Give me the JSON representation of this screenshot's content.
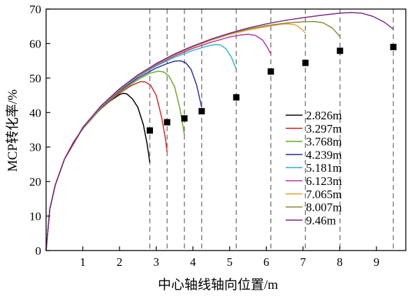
{
  "chart_data": {
    "type": "line",
    "title": "",
    "xlabel": "中心轴线轴向位置/m",
    "ylabel": "MCP转化率/%",
    "xlim": [
      0,
      9.8
    ],
    "ylim": [
      0,
      70
    ],
    "xticks": [
      "1",
      "2",
      "3",
      "4",
      "5",
      "6",
      "7",
      "8",
      "9"
    ],
    "yticks": [
      "0",
      "10",
      "20",
      "30",
      "40",
      "50",
      "60",
      "70"
    ],
    "grid": false,
    "legend_position": "center-right",
    "vertical_reference_lines": [
      2.826,
      3.297,
      3.768,
      4.239,
      5.181,
      6.123,
      7.065,
      8.007,
      9.46
    ],
    "series": [
      {
        "name": "2.826m",
        "color": "#000000",
        "points": [
          [
            0,
            0
          ],
          [
            0.1,
            12
          ],
          [
            0.25,
            19
          ],
          [
            0.5,
            26.5
          ],
          [
            0.75,
            31.5
          ],
          [
            1,
            35.3
          ],
          [
            1.25,
            38.5
          ],
          [
            1.5,
            41.2
          ],
          [
            1.75,
            43.4
          ],
          [
            2,
            45.2
          ],
          [
            2.1,
            45.6
          ],
          [
            2.2,
            45.4
          ],
          [
            2.35,
            44
          ],
          [
            2.5,
            41.5
          ],
          [
            2.65,
            36.5
          ],
          [
            2.75,
            31
          ],
          [
            2.826,
            25.5
          ]
        ]
      },
      {
        "name": "3.297m",
        "color": "#d62a2a",
        "points": [
          [
            0,
            0
          ],
          [
            0.1,
            12
          ],
          [
            0.25,
            19
          ],
          [
            0.5,
            26.5
          ],
          [
            0.75,
            31.5
          ],
          [
            1,
            35.3
          ],
          [
            1.5,
            41.3
          ],
          [
            2,
            45.6
          ],
          [
            2.3,
            47.7
          ],
          [
            2.55,
            48.9
          ],
          [
            2.7,
            48.9
          ],
          [
            2.85,
            47.9
          ],
          [
            3,
            45
          ],
          [
            3.15,
            38.5
          ],
          [
            3.25,
            32.5
          ],
          [
            3.297,
            28.5
          ]
        ]
      },
      {
        "name": "3.768m",
        "color": "#6aaa2a",
        "points": [
          [
            0,
            0
          ],
          [
            0.1,
            12
          ],
          [
            0.25,
            19
          ],
          [
            0.5,
            26.5
          ],
          [
            1,
            35.4
          ],
          [
            1.5,
            41.4
          ],
          [
            2,
            46
          ],
          [
            2.5,
            49.5
          ],
          [
            2.8,
            51.3
          ],
          [
            3.05,
            52
          ],
          [
            3.2,
            51.8
          ],
          [
            3.35,
            50.5
          ],
          [
            3.5,
            47.5
          ],
          [
            3.65,
            41
          ],
          [
            3.768,
            33.5
          ]
        ]
      },
      {
        "name": "4.239m",
        "color": "#2e3192",
        "points": [
          [
            0,
            0
          ],
          [
            0.1,
            12
          ],
          [
            0.25,
            19
          ],
          [
            0.5,
            26.5
          ],
          [
            1,
            35.5
          ],
          [
            1.5,
            41.6
          ],
          [
            2,
            46.3
          ],
          [
            2.5,
            50
          ],
          [
            3,
            52.9
          ],
          [
            3.3,
            54.2
          ],
          [
            3.5,
            54.9
          ],
          [
            3.65,
            55
          ],
          [
            3.8,
            54.5
          ],
          [
            3.95,
            52.5
          ],
          [
            4.1,
            48
          ],
          [
            4.239,
            41.5
          ]
        ]
      },
      {
        "name": "5.181m",
        "color": "#36b6c8",
        "points": [
          [
            0,
            0
          ],
          [
            0.1,
            12
          ],
          [
            0.25,
            19
          ],
          [
            0.5,
            26.5
          ],
          [
            1,
            35.5
          ],
          [
            1.5,
            41.7
          ],
          [
            2,
            46.5
          ],
          [
            2.5,
            50.4
          ],
          [
            3,
            53.5
          ],
          [
            3.5,
            56
          ],
          [
            4,
            58
          ],
          [
            4.4,
            59.3
          ],
          [
            4.6,
            59.7
          ],
          [
            4.75,
            59.6
          ],
          [
            4.9,
            58.5
          ],
          [
            5.05,
            56
          ],
          [
            5.181,
            52.5
          ]
        ]
      },
      {
        "name": "6.123m",
        "color": "#b033b0",
        "points": [
          [
            0,
            0
          ],
          [
            0.1,
            12
          ],
          [
            0.25,
            19
          ],
          [
            0.5,
            26.5
          ],
          [
            1,
            35.6
          ],
          [
            1.5,
            41.8
          ],
          [
            2,
            46.6
          ],
          [
            2.5,
            50.6
          ],
          [
            3,
            53.8
          ],
          [
            3.5,
            56.4
          ],
          [
            4,
            58.6
          ],
          [
            4.5,
            60.4
          ],
          [
            5,
            61.9
          ],
          [
            5.3,
            62.5
          ],
          [
            5.5,
            62.7
          ],
          [
            5.7,
            62.4
          ],
          [
            5.9,
            61
          ],
          [
            6.05,
            58.5
          ],
          [
            6.123,
            57
          ]
        ]
      },
      {
        "name": "7.065m",
        "color": "#e8a838",
        "points": [
          [
            0,
            0
          ],
          [
            0.1,
            12
          ],
          [
            0.25,
            19
          ],
          [
            0.5,
            26.5
          ],
          [
            1,
            35.6
          ],
          [
            1.5,
            41.8
          ],
          [
            2,
            46.7
          ],
          [
            2.5,
            50.7
          ],
          [
            3,
            54
          ],
          [
            3.5,
            56.7
          ],
          [
            4,
            59
          ],
          [
            4.5,
            61
          ],
          [
            5,
            62.6
          ],
          [
            5.5,
            63.9
          ],
          [
            6,
            64.9
          ],
          [
            6.4,
            65.6
          ],
          [
            6.6,
            65.7
          ],
          [
            6.8,
            65.4
          ],
          [
            6.95,
            64.3
          ],
          [
            7.065,
            63
          ]
        ]
      },
      {
        "name": "8.007m",
        "color": "#8a8a3a",
        "points": [
          [
            0,
            0
          ],
          [
            0.1,
            12
          ],
          [
            0.25,
            19
          ],
          [
            0.5,
            26.5
          ],
          [
            1,
            35.7
          ],
          [
            1.5,
            41.9
          ],
          [
            2,
            46.8
          ],
          [
            2.5,
            50.8
          ],
          [
            3,
            54.1
          ],
          [
            3.5,
            56.9
          ],
          [
            4,
            59.2
          ],
          [
            4.5,
            61.2
          ],
          [
            5,
            62.9
          ],
          [
            5.5,
            64.2
          ],
          [
            6,
            65.2
          ],
          [
            6.5,
            65.9
          ],
          [
            7,
            66.3
          ],
          [
            7.3,
            66.4
          ],
          [
            7.55,
            66
          ],
          [
            7.8,
            64.5
          ],
          [
            8.007,
            62
          ]
        ]
      },
      {
        "name": "9.46m",
        "color": "#7a2a86",
        "points": [
          [
            0,
            0
          ],
          [
            0.1,
            12
          ],
          [
            0.25,
            19
          ],
          [
            0.5,
            26.5
          ],
          [
            1,
            35.7
          ],
          [
            1.5,
            42
          ],
          [
            2,
            46.9
          ],
          [
            2.5,
            50.9
          ],
          [
            3,
            54.2
          ],
          [
            3.5,
            57
          ],
          [
            4,
            59.3
          ],
          [
            4.5,
            61.3
          ],
          [
            5,
            63
          ],
          [
            5.5,
            64.5
          ],
          [
            6,
            65.7
          ],
          [
            6.5,
            66.7
          ],
          [
            7,
            67.5
          ],
          [
            7.5,
            68.2
          ],
          [
            8,
            68.8
          ],
          [
            8.3,
            69
          ],
          [
            8.6,
            68.8
          ],
          [
            8.9,
            67.9
          ],
          [
            9.2,
            66.3
          ],
          [
            9.46,
            64.2
          ]
        ]
      }
    ],
    "markers": {
      "shape": "square",
      "color": "#000000",
      "points": [
        [
          2.826,
          34.8
        ],
        [
          3.297,
          37.2
        ],
        [
          3.768,
          38.3
        ],
        [
          4.239,
          40.4
        ],
        [
          5.181,
          44.4
        ],
        [
          6.123,
          51.9
        ],
        [
          7.065,
          54.4
        ],
        [
          8.007,
          57.9
        ],
        [
          9.46,
          59
        ]
      ]
    }
  }
}
